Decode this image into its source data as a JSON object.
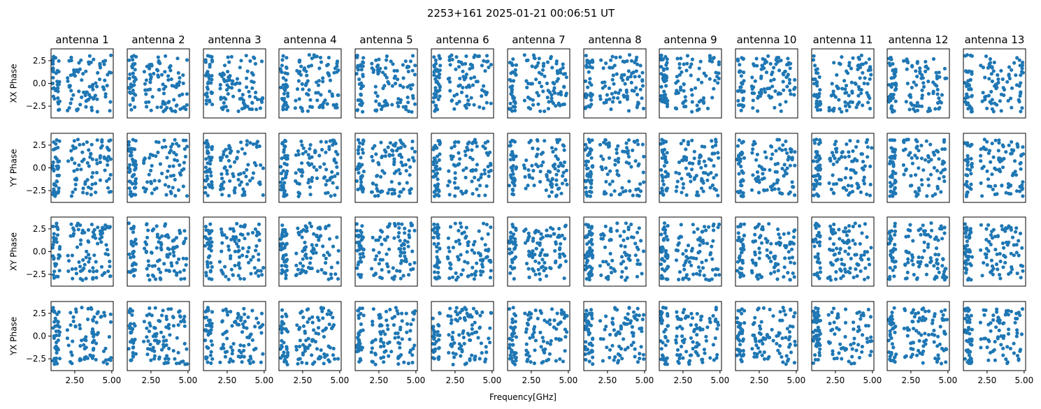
{
  "chart_data": {
    "type": "scatter",
    "title": "2253+161 2025-01-21 00:06:51 UT",
    "xlabel": "Frequency[GHz]",
    "panel_titles": [
      "antenna 1",
      "antenna 2",
      "antenna 3",
      "antenna 4",
      "antenna 5",
      "antenna 6",
      "antenna 7",
      "antenna 8",
      "antenna 9",
      "antenna 10",
      "antenna 11",
      "antenna 12",
      "antenna 13"
    ],
    "row_labels": [
      "XX Phase",
      "YY Phase",
      "XY Phase",
      "YX Phase"
    ],
    "xlim": [
      0.9,
      5.1
    ],
    "ylim": [
      -3.8,
      3.8
    ],
    "xticks": [
      2.5,
      5.0
    ],
    "xtick_labels": [
      "2.50",
      "5.00"
    ],
    "yticks": [
      2.5,
      0.0,
      -2.5
    ],
    "ytick_labels": [
      "2.5",
      "0.0",
      "−2.5"
    ],
    "grid": false,
    "marker_color": "#1f77b4",
    "points_per_panel": 120,
    "low_band_x": [
      1.0,
      1.5
    ],
    "high_band_x": [
      2.0,
      4.95
    ]
  }
}
